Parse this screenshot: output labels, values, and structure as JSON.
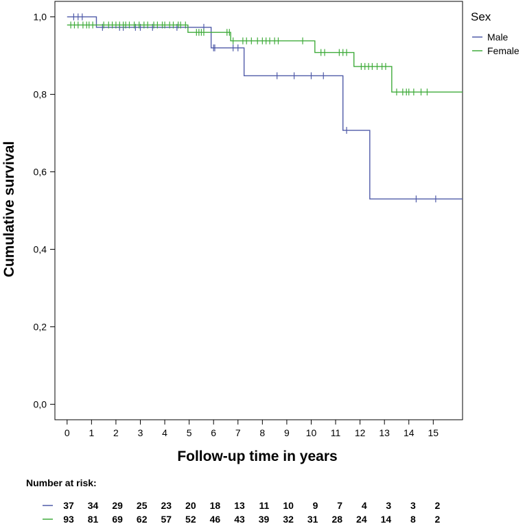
{
  "chart_data": {
    "type": "line",
    "subtype": "kaplan-meier step",
    "title": "",
    "xlabel": "Follow-up time in years",
    "ylabel": "Cumulative survival",
    "xlim": [
      -0.5,
      16.2
    ],
    "ylim": [
      -0.04,
      1.04
    ],
    "x_ticks": [
      0,
      1,
      2,
      3,
      4,
      5,
      6,
      7,
      8,
      9,
      10,
      11,
      12,
      13,
      14,
      15
    ],
    "x_tick_labels": [
      "0",
      "1",
      "2",
      "3",
      "4",
      "5",
      "6",
      "7",
      "8",
      "9",
      "10",
      "11",
      "12",
      "13",
      "14",
      "15"
    ],
    "y_ticks": [
      0.0,
      0.2,
      0.4,
      0.6,
      0.8,
      1.0
    ],
    "y_tick_labels": [
      "0,0",
      "0,2",
      "0,4",
      "0,6",
      "0,8",
      "1,0"
    ],
    "grid": false,
    "legend": {
      "title": "Sex",
      "position": "top-right outside"
    },
    "series": [
      {
        "name": "Male",
        "color": "#4f5aa8",
        "steps": [
          [
            0,
            1.0
          ],
          [
            1.2,
            0.973
          ],
          [
            5.9,
            0.92
          ],
          [
            7.25,
            0.848
          ],
          [
            11.3,
            0.707
          ],
          [
            12.4,
            0.53
          ],
          [
            16.2,
            0.53
          ]
        ],
        "censors": [
          0.27,
          0.45,
          0.62,
          1.45,
          2.15,
          2.3,
          2.8,
          3.0,
          3.5,
          4.5,
          5.6,
          6.0,
          6.05,
          6.8,
          7.0,
          8.6,
          9.3,
          10.0,
          10.5,
          11.45,
          14.3,
          15.1
        ]
      },
      {
        "name": "Female",
        "color": "#3fab3a",
        "steps": [
          [
            0,
            0.979
          ],
          [
            4.95,
            0.96
          ],
          [
            6.7,
            0.938
          ],
          [
            10.15,
            0.908
          ],
          [
            11.75,
            0.872
          ],
          [
            13.3,
            0.806
          ],
          [
            16.2,
            0.806
          ]
        ],
        "censors": [
          0.15,
          0.3,
          0.45,
          0.65,
          0.8,
          0.9,
          1.05,
          1.5,
          1.7,
          1.85,
          2.0,
          2.15,
          2.3,
          2.4,
          2.55,
          2.75,
          2.95,
          3.15,
          3.3,
          3.55,
          3.7,
          3.9,
          4.0,
          4.2,
          4.35,
          4.55,
          4.65,
          4.85,
          5.3,
          5.4,
          5.5,
          5.6,
          6.55,
          6.65,
          6.8,
          7.2,
          7.35,
          7.55,
          7.8,
          8.0,
          8.15,
          8.3,
          8.5,
          8.65,
          9.65,
          10.4,
          10.55,
          11.15,
          11.3,
          11.45,
          12.05,
          12.2,
          12.35,
          12.5,
          12.7,
          12.9,
          13.05,
          13.5,
          13.75,
          13.9,
          14.0,
          14.2,
          14.5,
          14.75
        ]
      }
    ]
  },
  "risk_table": {
    "title": "Number at risk:",
    "rows": [
      {
        "name": "Male",
        "color": "#4f5aa8",
        "values": [
          "37",
          "34",
          "29",
          "25",
          "23",
          "20",
          "18",
          "13",
          "11",
          "10",
          "9",
          "7",
          "4",
          "3",
          "3",
          "2"
        ]
      },
      {
        "name": "Female",
        "color": "#3fab3a",
        "values": [
          "93",
          "81",
          "69",
          "62",
          "57",
          "52",
          "46",
          "43",
          "39",
          "32",
          "31",
          "28",
          "24",
          "14",
          "8",
          "2"
        ]
      }
    ]
  }
}
